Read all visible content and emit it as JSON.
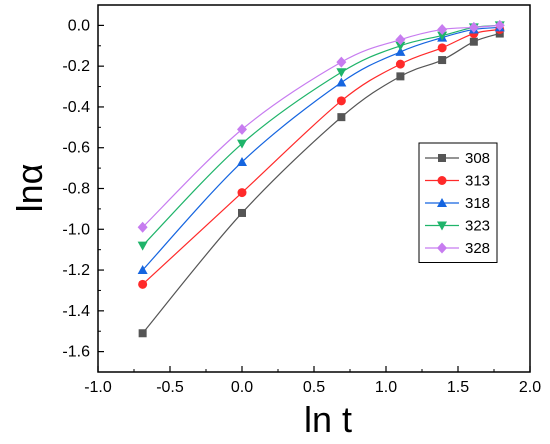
{
  "chart_data": {
    "type": "line",
    "title": "",
    "xlabel": "ln t",
    "ylabel": "lnα",
    "xlim": [
      -1.0,
      2.0
    ],
    "ylim": [
      -1.7,
      0.1
    ],
    "xticks": [
      "-1.0",
      "-0.5",
      "0.0",
      "0.5",
      "1.0",
      "1.5",
      "2.0"
    ],
    "yticks": [
      "0.0",
      "-0.2",
      "-0.4",
      "-0.6",
      "-0.8",
      "-1.0",
      "-1.2",
      "-1.4",
      "-1.6"
    ],
    "grid": false,
    "legend_position": "right-center",
    "series": [
      {
        "name": "308",
        "color": "#555555",
        "marker": "square",
        "x": [
          -0.69,
          0.0,
          0.69,
          1.1,
          1.39,
          1.61,
          1.79
        ],
        "y": [
          -1.51,
          -0.92,
          -0.45,
          -0.25,
          -0.17,
          -0.08,
          -0.04
        ]
      },
      {
        "name": "313",
        "color": "#ff2a2a",
        "marker": "circle",
        "x": [
          -0.69,
          0.0,
          0.69,
          1.1,
          1.39,
          1.61,
          1.79
        ],
        "y": [
          -1.27,
          -0.82,
          -0.37,
          -0.19,
          -0.11,
          -0.04,
          -0.02
        ]
      },
      {
        "name": "318",
        "color": "#1565e0",
        "marker": "triangle-up",
        "x": [
          -0.69,
          0.0,
          0.69,
          1.1,
          1.39,
          1.61,
          1.79
        ],
        "y": [
          -1.2,
          -0.67,
          -0.28,
          -0.13,
          -0.06,
          -0.02,
          -0.01
        ]
      },
      {
        "name": "323",
        "color": "#1fb46a",
        "marker": "triangle-down",
        "x": [
          -0.69,
          0.0,
          0.69,
          1.1,
          1.39,
          1.61,
          1.79
        ],
        "y": [
          -1.08,
          -0.58,
          -0.23,
          -0.1,
          -0.05,
          -0.01,
          0.0
        ]
      },
      {
        "name": "328",
        "color": "#c77cf0",
        "marker": "diamond",
        "x": [
          -0.69,
          0.0,
          0.69,
          1.1,
          1.39,
          1.61,
          1.79
        ],
        "y": [
          -0.99,
          -0.51,
          -0.18,
          -0.07,
          -0.02,
          -0.01,
          0.0
        ]
      }
    ]
  }
}
